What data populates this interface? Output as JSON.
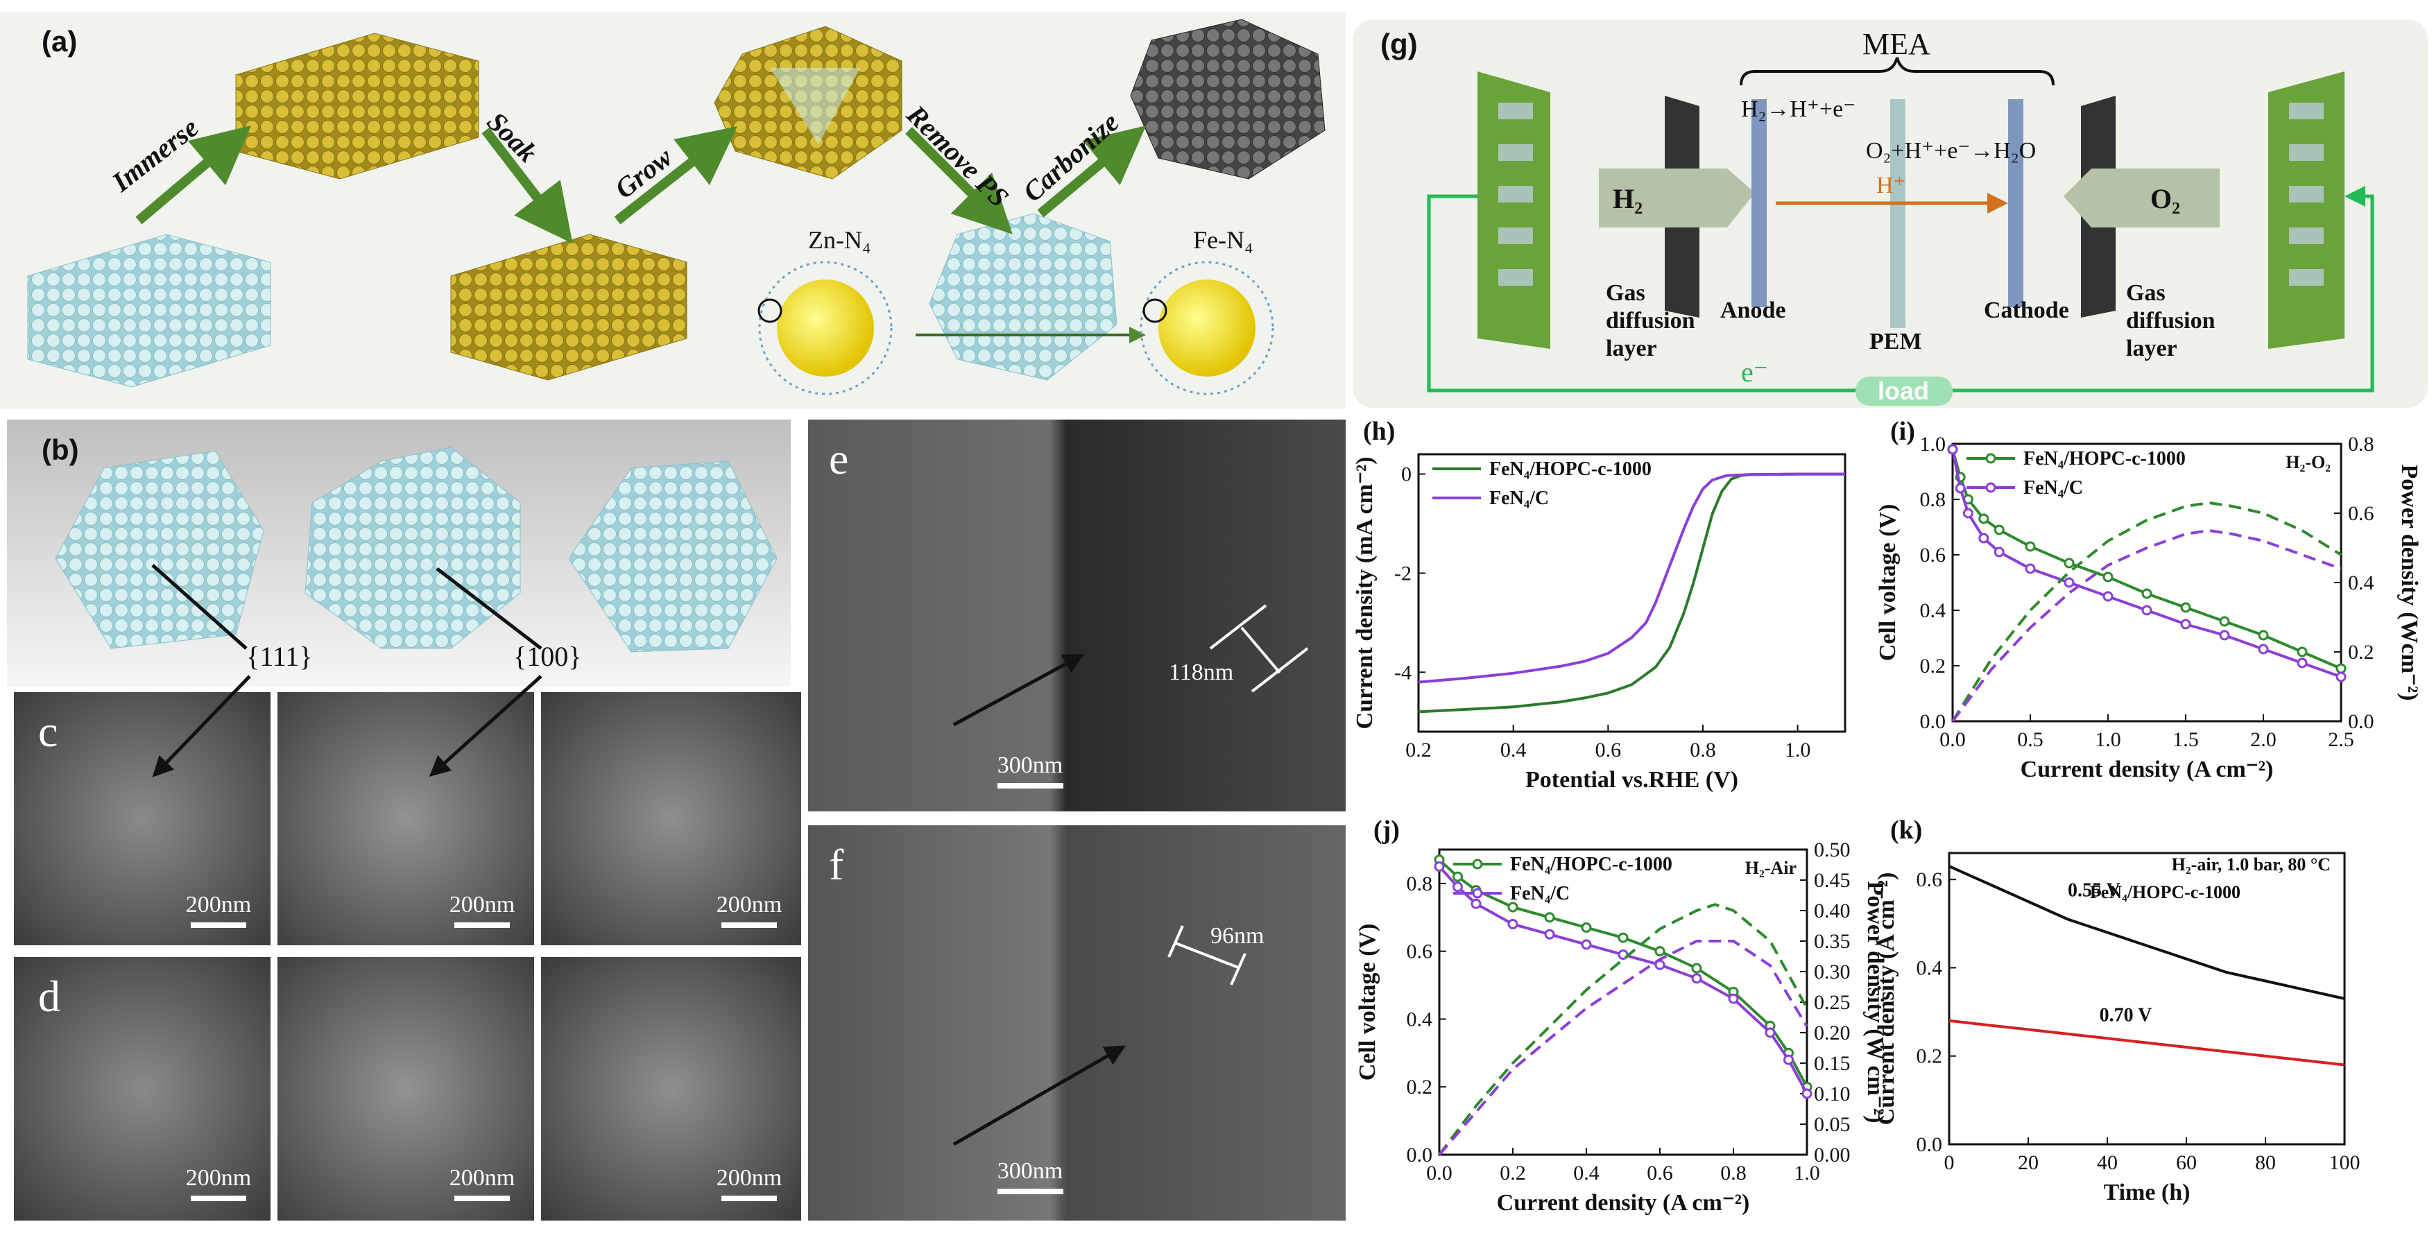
{
  "panels": {
    "a": "(a)",
    "b": "(b)",
    "g": "(g)",
    "c": "c",
    "d": "d",
    "e": "e",
    "f": "f",
    "h": "(h)",
    "i": "(i)",
    "j": "(j)",
    "k": "(k)"
  },
  "panel_a": {
    "steps": [
      "Immerse",
      "Soak",
      "Grow",
      "Remove PS",
      "Carbonize"
    ],
    "zn_label": "Zn-N₄",
    "fe_label": "Fe-N₄"
  },
  "panel_b": {
    "facet_111": "{111}",
    "facet_100": "{100}"
  },
  "sem": {
    "c_scales": [
      "200nm",
      "200nm",
      "200nm"
    ],
    "d_scales": [
      "200nm",
      "200nm",
      "200nm"
    ],
    "e_scale": "300nm",
    "e_pore": "118nm",
    "f_scale": "300nm",
    "f_pore": "96nm"
  },
  "panel_g": {
    "title": "MEA",
    "anode_reaction": "H₂→H⁺+e⁻",
    "cathode_reaction": "O₂+H⁺+e⁻→H₂O",
    "proton": "H⁺",
    "h2": "H₂",
    "o2": "O₂",
    "gdl_left": [
      "Gas",
      "diffusion",
      "layer"
    ],
    "gdl_right": [
      "Gas",
      "diffusion",
      "layer"
    ],
    "anode": "Anode",
    "pem": "PEM",
    "cathode": "Cathode",
    "electron": "e⁻",
    "load": "load",
    "colors": {
      "green": "#6aa33a",
      "dark": "#333333",
      "blue": "#7f97bf",
      "pem": "#a9c6c4",
      "wire": "#22bb55",
      "arrow": "#d4711e"
    }
  },
  "chart_data": [
    {
      "id": "h",
      "type": "line",
      "xlabel": "Potential vs.RHE (V)",
      "ylabel": "Current density (mA cm⁻²)",
      "xlim": [
        0.2,
        1.1
      ],
      "ylim": [
        -5.2,
        0.4
      ],
      "xticks": [
        0.2,
        0.4,
        0.6,
        0.8,
        1.0
      ],
      "yticks": [
        0,
        -2,
        -4
      ],
      "series": [
        {
          "name": "FeN₄/HOPC-c-1000",
          "color": "#2d7a2d",
          "x": [
            0.2,
            0.3,
            0.4,
            0.5,
            0.55,
            0.6,
            0.65,
            0.7,
            0.73,
            0.76,
            0.78,
            0.8,
            0.82,
            0.84,
            0.86,
            0.88,
            0.9,
            1.0,
            1.1
          ],
          "y": [
            -4.8,
            -4.75,
            -4.7,
            -4.6,
            -4.52,
            -4.42,
            -4.25,
            -3.9,
            -3.5,
            -2.8,
            -2.2,
            -1.5,
            -0.8,
            -0.35,
            -0.1,
            -0.03,
            -0.01,
            0,
            0
          ]
        },
        {
          "name": "FeN₄/C",
          "color": "#8b3fd6",
          "x": [
            0.2,
            0.3,
            0.4,
            0.5,
            0.55,
            0.6,
            0.65,
            0.68,
            0.7,
            0.72,
            0.74,
            0.76,
            0.78,
            0.8,
            0.82,
            0.85,
            0.9,
            1.0,
            1.1
          ],
          "y": [
            -4.2,
            -4.12,
            -4.02,
            -3.88,
            -3.78,
            -3.62,
            -3.3,
            -3.0,
            -2.6,
            -2.1,
            -1.6,
            -1.1,
            -0.65,
            -0.3,
            -0.12,
            -0.03,
            -0.01,
            0,
            0
          ]
        }
      ]
    },
    {
      "id": "i",
      "type": "line",
      "xlabel": "Current density (A cm⁻²)",
      "ylabel": "Cell voltage (V)",
      "y2label": "Power density (Wcm⁻²)",
      "annotation": "H₂-O₂",
      "xlim": [
        0,
        2.5
      ],
      "ylim": [
        0,
        1.0
      ],
      "y2lim": [
        0,
        0.8
      ],
      "xticks": [
        0.0,
        0.5,
        1.0,
        1.5,
        2.0,
        2.5
      ],
      "yticks": [
        0.0,
        0.2,
        0.4,
        0.6,
        0.8,
        1.0
      ],
      "y2ticks": [
        0.0,
        0.2,
        0.4,
        0.6,
        0.8
      ],
      "series": [
        {
          "name": "FeN₄/HOPC-c-1000",
          "color": "#2d8a2d",
          "axis": "left",
          "marker": true,
          "x": [
            0.0,
            0.05,
            0.1,
            0.2,
            0.3,
            0.5,
            0.75,
            1.0,
            1.25,
            1.5,
            1.75,
            2.0,
            2.25,
            2.5
          ],
          "y": [
            0.98,
            0.88,
            0.8,
            0.73,
            0.69,
            0.63,
            0.57,
            0.52,
            0.46,
            0.41,
            0.36,
            0.31,
            0.25,
            0.19
          ]
        },
        {
          "name": "FeN₄/C",
          "color": "#8b3fd6",
          "axis": "left",
          "marker": true,
          "x": [
            0.0,
            0.05,
            0.1,
            0.2,
            0.3,
            0.5,
            0.75,
            1.0,
            1.25,
            1.5,
            1.75,
            2.0,
            2.25,
            2.5
          ],
          "y": [
            0.98,
            0.84,
            0.75,
            0.66,
            0.61,
            0.55,
            0.5,
            0.45,
            0.4,
            0.35,
            0.31,
            0.26,
            0.21,
            0.16
          ]
        },
        {
          "name": "",
          "color": "#2d8a2d",
          "axis": "right",
          "dashed": true,
          "x": [
            0.0,
            0.25,
            0.5,
            0.75,
            1.0,
            1.25,
            1.5,
            1.65,
            1.8,
            2.0,
            2.25,
            2.5
          ],
          "y": [
            0.0,
            0.18,
            0.32,
            0.43,
            0.52,
            0.58,
            0.62,
            0.63,
            0.62,
            0.6,
            0.55,
            0.48
          ]
        },
        {
          "name": "",
          "color": "#8b3fd6",
          "axis": "right",
          "dashed": true,
          "x": [
            0.0,
            0.25,
            0.5,
            0.75,
            1.0,
            1.25,
            1.5,
            1.65,
            1.8,
            2.0,
            2.25,
            2.5
          ],
          "y": [
            0.0,
            0.15,
            0.27,
            0.37,
            0.45,
            0.5,
            0.54,
            0.55,
            0.54,
            0.52,
            0.48,
            0.44
          ]
        }
      ]
    },
    {
      "id": "j",
      "type": "line",
      "xlabel": "Current density (A cm⁻²)",
      "ylabel": "Cell voltage (V)",
      "y2label": "Power density (W cm⁻²)",
      "annotation": "H₂-Air",
      "xlim": [
        0,
        1.0
      ],
      "ylim": [
        0,
        0.9
      ],
      "y2lim": [
        0,
        0.5
      ],
      "xticks": [
        0.0,
        0.2,
        0.4,
        0.6,
        0.8,
        1.0
      ],
      "yticks": [
        0.0,
        0.2,
        0.4,
        0.6,
        0.8
      ],
      "y2ticks": [
        0.0,
        0.05,
        0.1,
        0.15,
        0.2,
        0.25,
        0.3,
        0.35,
        0.4,
        0.45,
        0.5
      ],
      "series": [
        {
          "name": "FeN₄/HOPC-c-1000",
          "color": "#2d8a2d",
          "axis": "left",
          "marker": true,
          "x": [
            0.0,
            0.05,
            0.1,
            0.2,
            0.3,
            0.4,
            0.5,
            0.6,
            0.7,
            0.8,
            0.9,
            0.95,
            1.0
          ],
          "y": [
            0.87,
            0.82,
            0.78,
            0.73,
            0.7,
            0.67,
            0.64,
            0.6,
            0.55,
            0.48,
            0.38,
            0.3,
            0.2
          ]
        },
        {
          "name": "FeN₄/C",
          "color": "#8b3fd6",
          "axis": "left",
          "marker": true,
          "x": [
            0.0,
            0.05,
            0.1,
            0.2,
            0.3,
            0.4,
            0.5,
            0.6,
            0.7,
            0.8,
            0.9,
            0.95,
            1.0
          ],
          "y": [
            0.85,
            0.79,
            0.74,
            0.68,
            0.65,
            0.62,
            0.59,
            0.56,
            0.52,
            0.46,
            0.36,
            0.28,
            0.18
          ]
        },
        {
          "name": "",
          "color": "#2d8a2d",
          "axis": "right",
          "dashed": true,
          "x": [
            0.0,
            0.1,
            0.2,
            0.3,
            0.4,
            0.5,
            0.6,
            0.7,
            0.75,
            0.8,
            0.9,
            1.0
          ],
          "y": [
            0.0,
            0.08,
            0.15,
            0.21,
            0.27,
            0.32,
            0.37,
            0.4,
            0.41,
            0.4,
            0.35,
            0.24
          ]
        },
        {
          "name": "",
          "color": "#8b3fd6",
          "axis": "right",
          "dashed": true,
          "x": [
            0.0,
            0.1,
            0.2,
            0.3,
            0.4,
            0.5,
            0.6,
            0.7,
            0.75,
            0.8,
            0.9,
            1.0
          ],
          "y": [
            0.0,
            0.07,
            0.14,
            0.19,
            0.24,
            0.28,
            0.32,
            0.35,
            0.35,
            0.35,
            0.31,
            0.21
          ]
        }
      ]
    },
    {
      "id": "k",
      "type": "line",
      "xlabel": "Time (h)",
      "ylabel": "Current density (A cm⁻²)",
      "annotation": "H₂-air, 1.0 bar, 80 °C",
      "subtitle": "FeN₄/HOPC-c-1000",
      "xlim": [
        0,
        100
      ],
      "ylim": [
        0,
        0.66
      ],
      "xticks": [
        0,
        20,
        40,
        60,
        80,
        100
      ],
      "yticks": [
        0.0,
        0.2,
        0.4,
        0.6
      ],
      "series": [
        {
          "name": "0.55 V",
          "color": "#111111",
          "x": [
            0,
            10,
            20,
            30,
            40,
            50,
            60,
            70,
            80,
            90,
            100
          ],
          "y": [
            0.63,
            0.59,
            0.55,
            0.51,
            0.48,
            0.45,
            0.42,
            0.39,
            0.37,
            0.35,
            0.33
          ]
        },
        {
          "name": "0.70 V",
          "color": "#d62020",
          "x": [
            0,
            10,
            20,
            30,
            40,
            50,
            60,
            70,
            80,
            90,
            100
          ],
          "y": [
            0.28,
            0.27,
            0.26,
            0.25,
            0.24,
            0.23,
            0.22,
            0.21,
            0.2,
            0.19,
            0.18
          ]
        }
      ]
    }
  ]
}
